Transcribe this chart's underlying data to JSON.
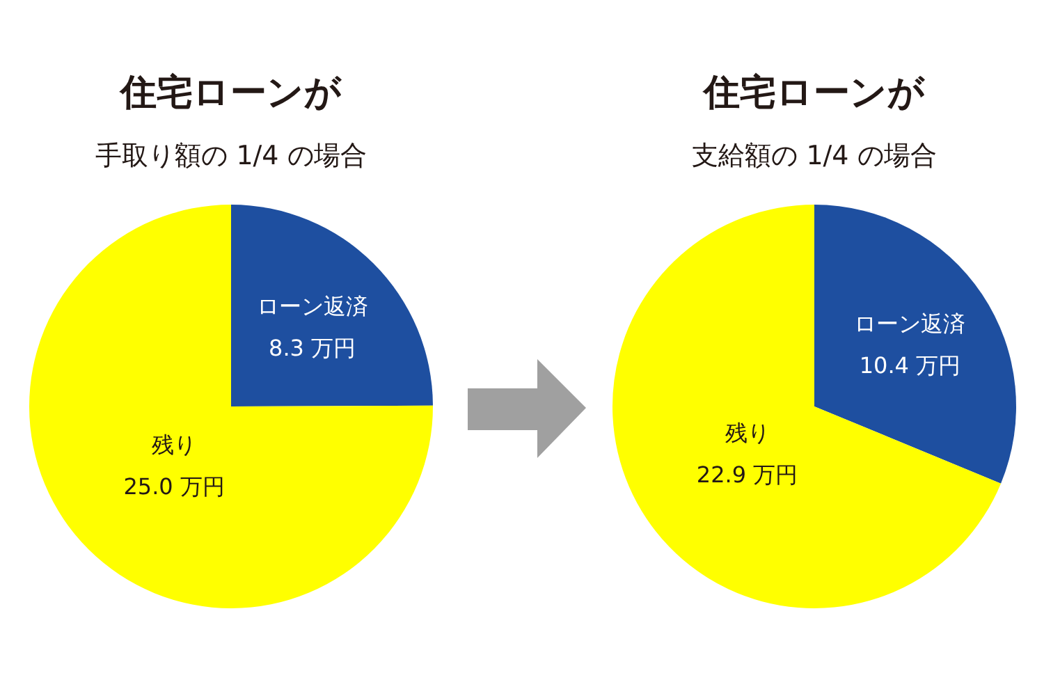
{
  "chart_data": [
    {
      "type": "pie",
      "title": "住宅ローンが",
      "subtitle": "手取り額の 1/4 の場合",
      "categories": [
        "ローン返済",
        "残り"
      ],
      "values": [
        8.3,
        25.0
      ],
      "colors": [
        "#1e4fa0",
        "#ffff00"
      ],
      "value_labels": [
        "8.3 万円",
        "25.0 万円"
      ]
    },
    {
      "type": "pie",
      "title": "住宅ローンが",
      "subtitle": "支給額の 1/4 の場合",
      "categories": [
        "ローン返済",
        "残り"
      ],
      "values": [
        10.4,
        22.9
      ],
      "colors": [
        "#1e4fa0",
        "#ffff00"
      ],
      "value_labels": [
        "10.4 万円",
        "22.9 万円"
      ]
    }
  ]
}
